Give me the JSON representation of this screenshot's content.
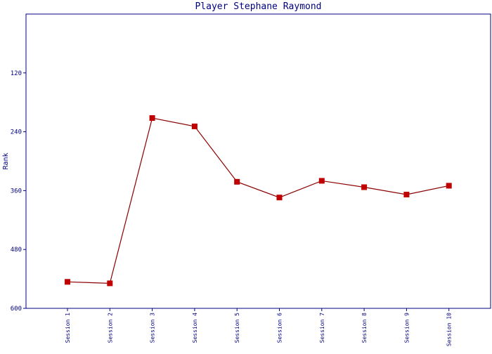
{
  "chart_data": {
    "type": "line",
    "title": "Player Stephane Raymond",
    "xlabel": "",
    "ylabel": "Rank",
    "y_axis_inverted": true,
    "ylim": [
      0,
      600
    ],
    "yticks": [
      120,
      240,
      360,
      480,
      600
    ],
    "categories": [
      "Session 1",
      "Session 2",
      "Session 3",
      "Session 4",
      "Session 5",
      "Session 6",
      "Session 7",
      "Session 8",
      "Session 9",
      "Session 10"
    ],
    "series": [
      {
        "values": [
          546,
          549,
          212,
          229,
          342,
          374,
          340,
          353,
          368,
          350
        ]
      }
    ],
    "grid": false,
    "colors": {
      "axis": "#000080",
      "text": "#000080",
      "line": "#8b0000",
      "marker": "#c00000"
    }
  }
}
